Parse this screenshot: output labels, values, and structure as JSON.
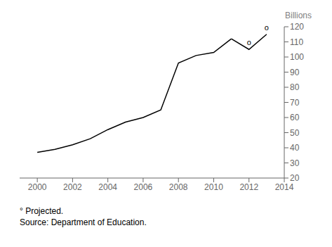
{
  "chart_data": {
    "type": "line",
    "x": [
      2000,
      2001,
      2002,
      2003,
      2004,
      2005,
      2006,
      2007,
      2008,
      2009,
      2010,
      2011,
      2012,
      2013
    ],
    "series": [
      {
        "color": "#000000",
        "values": [
          37,
          39,
          42,
          46,
          52,
          57,
          60,
          65,
          96,
          101,
          103,
          112,
          null,
          null
        ]
      },
      {
        "color": "#000000",
        "values": [
          null,
          null,
          null,
          null,
          null,
          null,
          null,
          null,
          null,
          null,
          null,
          112,
          105,
          115
        ]
      }
    ],
    "xlim": [
      1999,
      2014
    ],
    "xticks": [
      2000,
      2002,
      2004,
      2006,
      2008,
      2010,
      2012,
      2014
    ],
    "ylim": [
      20,
      120
    ],
    "yticks": [
      20,
      30,
      40,
      50,
      60,
      70,
      80,
      90,
      100,
      110,
      120
    ],
    "ylabel": "Billions",
    "grid": false,
    "annotations": [
      {
        "text": "o",
        "x": 2012,
        "y": 105
      },
      {
        "text": "o",
        "x": 2013,
        "y": 115
      }
    ],
    "footnotes": [
      "° Projected.",
      "Source: Department of Education."
    ]
  }
}
